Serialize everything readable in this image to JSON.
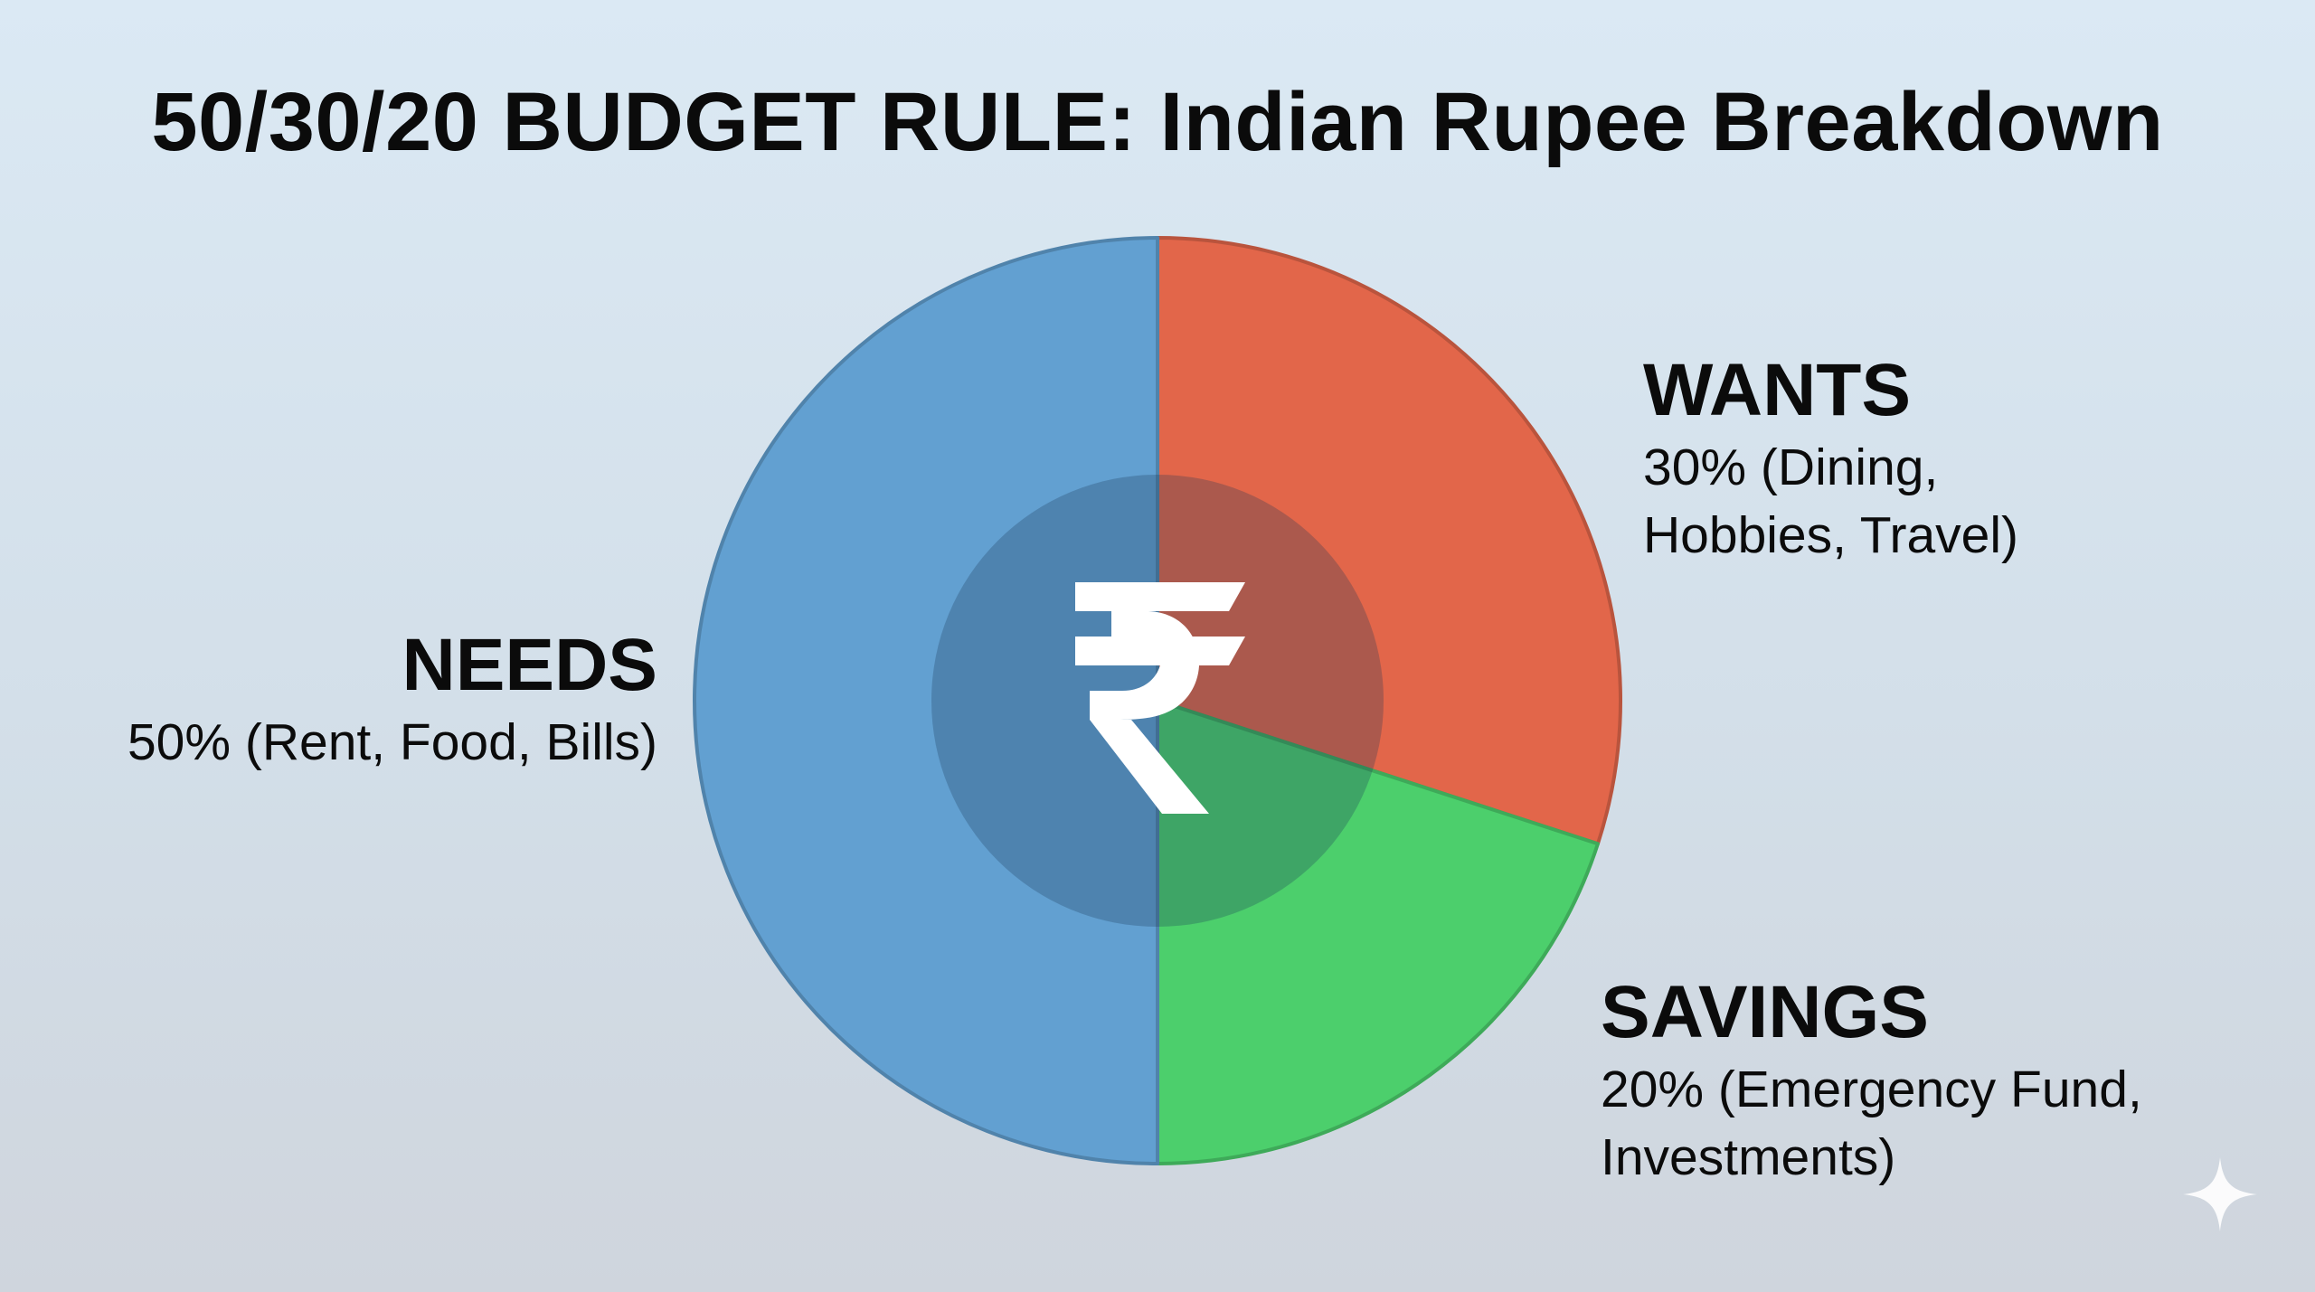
{
  "title": "50/30/20 BUDGET RULE: Indian Rupee Breakdown",
  "center_symbol": "₹",
  "labels": {
    "needs": {
      "heading": "NEEDS",
      "detail": "50% (Rent, Food, Bills)"
    },
    "wants": {
      "heading": "WANTS",
      "detail": "30% (Dining, Hobbies, Travel)"
    },
    "savings": {
      "heading": "SAVINGS",
      "detail": "20% (Emergency Fund, Investments)"
    }
  },
  "colors": {
    "needs": "#62a0d1",
    "wants": "#e2664a",
    "savings": "#4ccf6c",
    "center_overlay": "#1e3a55",
    "symbol": "#ffffff"
  },
  "icons": {
    "center": "rupee-icon",
    "corner": "sparkle-icon"
  },
  "chart_data": {
    "type": "pie",
    "title": "50/30/20 BUDGET RULE: Indian Rupee Breakdown",
    "start_angle": "12 o'clock, clockwise",
    "slices": [
      {
        "key": "wants",
        "label": "WANTS",
        "value": 30,
        "detail": "30% (Dining, Hobbies, Travel)",
        "color": "#e2664a"
      },
      {
        "key": "savings",
        "label": "SAVINGS",
        "value": 20,
        "detail": "20% (Emergency Fund, Investments)",
        "color": "#4ccf6c"
      },
      {
        "key": "needs",
        "label": "NEEDS",
        "value": 50,
        "detail": "50% (Rent, Food, Bills)",
        "color": "#62a0d1"
      }
    ]
  }
}
